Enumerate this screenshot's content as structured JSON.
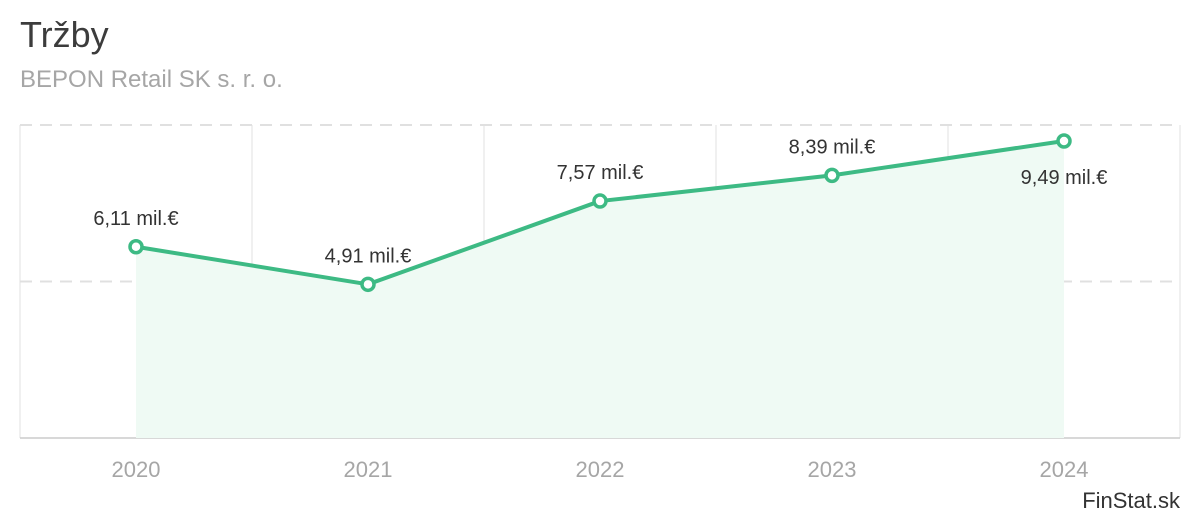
{
  "chart_data": {
    "type": "area",
    "title": "Tržby",
    "subtitle": "BEPON Retail SK s. r. o.",
    "categories": [
      "2020",
      "2021",
      "2022",
      "2023",
      "2024"
    ],
    "series": [
      {
        "name": "Tržby",
        "values": [
          6.11,
          4.91,
          7.57,
          8.39,
          9.49
        ],
        "labels": [
          "6,11 mil.€",
          "4,91 mil.€",
          "7,57 mil.€",
          "8,39 mil.€",
          "9,49 mil.€"
        ]
      }
    ],
    "ylim": [
      0,
      10
    ],
    "xlabel": "",
    "ylabel": "",
    "grid": true,
    "colors": {
      "line": "#3dba84",
      "fill": "#effaf4",
      "grid": "#e0e0e0",
      "axis": "#cccccc",
      "tick": "#a6a6a6",
      "label": "#333333"
    }
  },
  "credit": "FinStat.sk"
}
